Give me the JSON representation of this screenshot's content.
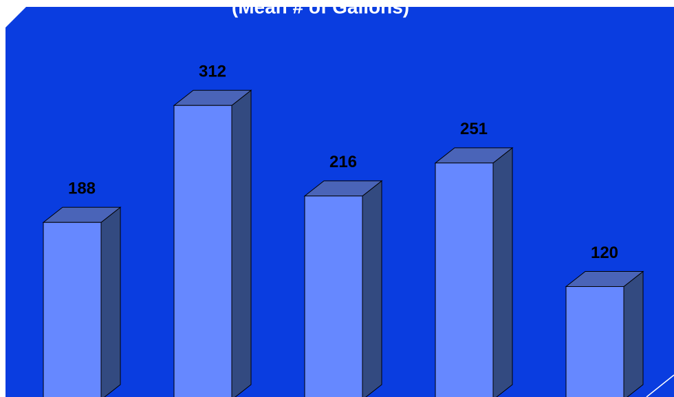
{
  "chart_data": {
    "type": "bar3d",
    "title": "(Mean # of Gallons)",
    "values": [
      188,
      312,
      216,
      251,
      120
    ],
    "color": "#6688ff"
  }
}
